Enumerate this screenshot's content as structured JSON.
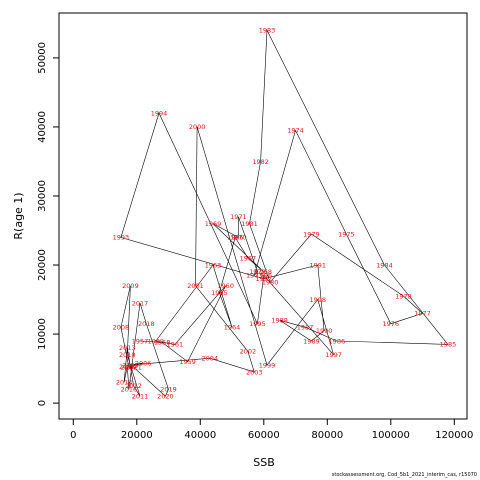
{
  "chart_data": {
    "type": "line",
    "xlabel": "SSB",
    "ylabel": "R(age 1)",
    "xlim": [
      -4500,
      124000
    ],
    "ylim": [
      -2300,
      56500
    ],
    "x_ticks": [
      0,
      20000,
      40000,
      60000,
      80000,
      100000,
      120000
    ],
    "y_ticks": [
      0,
      10000,
      20000,
      30000,
      40000,
      50000
    ],
    "grid": false,
    "line_color": "#000000",
    "label_color": "#e8141c",
    "series": [
      {
        "points": [
          {
            "year": "1974",
            "x": 70000,
            "y": 39500
          },
          {
            "year": "1975",
            "x": 86000,
            "y": 24500
          },
          {
            "year": "1976",
            "x": 100000,
            "y": 11500
          },
          {
            "year": "1977",
            "x": 110000,
            "y": 13000
          },
          {
            "year": "1978",
            "x": 104000,
            "y": 15500
          },
          {
            "year": "1979",
            "x": 75000,
            "y": 24500
          },
          {
            "year": "1980",
            "x": 62000,
            "y": 17500
          },
          {
            "year": "1981",
            "x": 55500,
            "y": 26000
          },
          {
            "year": "1982",
            "x": 59000,
            "y": 35000
          },
          {
            "year": "1983",
            "x": 61000,
            "y": 54000
          },
          {
            "year": "1984",
            "x": 98000,
            "y": 20000
          },
          {
            "year": "1985",
            "x": 118000,
            "y": 8500
          },
          {
            "year": "1986",
            "x": 83000,
            "y": 9000
          },
          {
            "year": "1987",
            "x": 73000,
            "y": 11000
          },
          {
            "year": "1988",
            "x": 65000,
            "y": 12000
          },
          {
            "year": "1989",
            "x": 75000,
            "y": 9000
          },
          {
            "year": "1990",
            "x": 79000,
            "y": 10500
          },
          {
            "year": "1991",
            "x": 77000,
            "y": 20000
          },
          {
            "year": "1992",
            "x": 60000,
            "y": 18000
          },
          {
            "year": "1993",
            "x": 15000,
            "y": 24000
          },
          {
            "year": "1994",
            "x": 27000,
            "y": 42000
          },
          {
            "year": "1995",
            "x": 58000,
            "y": 11500
          },
          {
            "year": "1996",
            "x": 60000,
            "y": 18500
          },
          {
            "year": "1997",
            "x": 82000,
            "y": 7000
          },
          {
            "year": "1998",
            "x": 77000,
            "y": 15000
          },
          {
            "year": "1999",
            "x": 61000,
            "y": 5500
          },
          {
            "year": "2000",
            "x": 39000,
            "y": 40000
          },
          {
            "year": "2001",
            "x": 38500,
            "y": 17000
          },
          {
            "year": "2002",
            "x": 55000,
            "y": 7500
          },
          {
            "year": "2003",
            "x": 57000,
            "y": 4500
          },
          {
            "year": "2004",
            "x": 43000,
            "y": 6500
          },
          {
            "year": "2005",
            "x": 18000,
            "y": 5500
          },
          {
            "year": "2006",
            "x": 22000,
            "y": 5800
          },
          {
            "year": "2007",
            "x": 17500,
            "y": 5200
          },
          {
            "year": "2008",
            "x": 15000,
            "y": 11000
          },
          {
            "year": "2009",
            "x": 18000,
            "y": 17000
          },
          {
            "year": "2010",
            "x": 17000,
            "y": 7000
          },
          {
            "year": "2011",
            "x": 21000,
            "y": 1000
          },
          {
            "year": "2012",
            "x": 19000,
            "y": 2500
          },
          {
            "year": "2013",
            "x": 17000,
            "y": 8000
          },
          {
            "year": "2014",
            "x": 16000,
            "y": 3000
          },
          {
            "year": "2015",
            "x": 17000,
            "y": 5300
          },
          {
            "year": "2016",
            "x": 17500,
            "y": 2000
          },
          {
            "year": "2017",
            "x": 21000,
            "y": 14500
          },
          {
            "year": "2018",
            "x": 23000,
            "y": 11500
          },
          {
            "year": "2019",
            "x": 30000,
            "y": 2000
          },
          {
            "year": "2020",
            "x": 29000,
            "y": 1000
          },
          {
            "year": "2021",
            "x": 19000,
            "y": 5200
          },
          {
            "year": "1966",
            "x": 51000,
            "y": 24000
          },
          {
            "year": "1967",
            "x": 55000,
            "y": 21000
          },
          {
            "year": "1968",
            "x": 60000,
            "y": 19000
          },
          {
            "year": "1969",
            "x": 44000,
            "y": 26000
          },
          {
            "year": "1970",
            "x": 52000,
            "y": 24000
          },
          {
            "year": "1971",
            "x": 52000,
            "y": 27000
          },
          {
            "year": "1972",
            "x": 58000,
            "y": 19000
          },
          {
            "year": "1973",
            "x": 57000,
            "y": 18500
          },
          {
            "year": "1963",
            "x": 44000,
            "y": 20000
          },
          {
            "year": "1964",
            "x": 50000,
            "y": 11000
          },
          {
            "year": "1965",
            "x": 46000,
            "y": 16000
          },
          {
            "year": "1959",
            "x": 36000,
            "y": 6000
          },
          {
            "year": "1960",
            "x": 48000,
            "y": 17000
          },
          {
            "year": "1961",
            "x": 32000,
            "y": 8500
          },
          {
            "year": "1962",
            "x": 26000,
            "y": 9000
          },
          {
            "year": "1957",
            "x": 21000,
            "y": 9000
          },
          {
            "year": "1958",
            "x": 28000,
            "y": 8800
          }
        ]
      }
    ]
  },
  "credit": "stockassessment.org, Cod_5b1_2021_interim_cas, r15070"
}
